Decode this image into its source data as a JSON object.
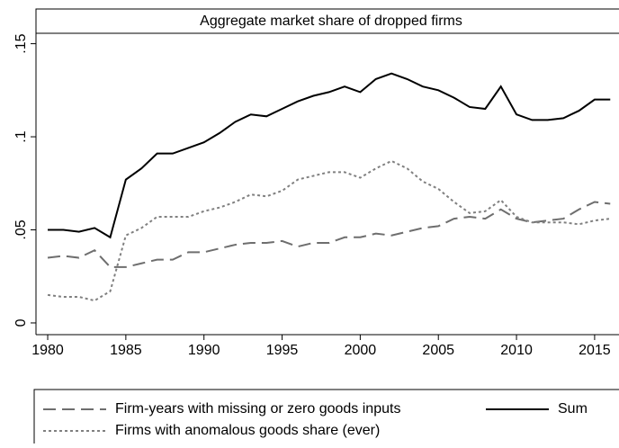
{
  "chart_data": {
    "type": "line",
    "title": "Aggregate market share of dropped firms",
    "x": [
      1980,
      1981,
      1982,
      1983,
      1984,
      1985,
      1986,
      1987,
      1988,
      1989,
      1990,
      1991,
      1992,
      1993,
      1994,
      1995,
      1996,
      1997,
      1998,
      1999,
      2000,
      2001,
      2002,
      2003,
      2004,
      2005,
      2006,
      2007,
      2008,
      2009,
      2010,
      2011,
      2012,
      2013,
      2014,
      2015,
      2016
    ],
    "series": [
      {
        "name": "Firm-years with missing or zero goods inputs",
        "color": "#6e6e6e",
        "linestyle": "dashed",
        "values": [
          0.035,
          0.036,
          0.035,
          0.039,
          0.03,
          0.03,
          0.032,
          0.034,
          0.034,
          0.038,
          0.038,
          0.04,
          0.042,
          0.043,
          0.043,
          0.044,
          0.041,
          0.043,
          0.043,
          0.046,
          0.046,
          0.048,
          0.047,
          0.049,
          0.051,
          0.052,
          0.056,
          0.057,
          0.056,
          0.061,
          0.056,
          0.054,
          0.055,
          0.056,
          0.061,
          0.065,
          0.064
        ]
      },
      {
        "name": "Sum",
        "color": "#000000",
        "linestyle": "solid",
        "values": [
          0.05,
          0.05,
          0.049,
          0.051,
          0.046,
          0.077,
          0.083,
          0.091,
          0.091,
          0.094,
          0.097,
          0.102,
          0.108,
          0.112,
          0.111,
          0.115,
          0.119,
          0.122,
          0.124,
          0.127,
          0.124,
          0.131,
          0.134,
          0.131,
          0.127,
          0.125,
          0.121,
          0.116,
          0.115,
          0.127,
          0.112,
          0.109,
          0.109,
          0.11,
          0.114,
          0.12,
          0.12
        ]
      },
      {
        "name": "Firms with anomalous goods share (ever)",
        "color": "#808080",
        "linestyle": "dotted",
        "values": [
          0.015,
          0.014,
          0.014,
          0.012,
          0.017,
          0.047,
          0.051,
          0.057,
          0.057,
          0.057,
          0.06,
          0.062,
          0.065,
          0.069,
          0.068,
          0.071,
          0.077,
          0.079,
          0.081,
          0.081,
          0.078,
          0.083,
          0.087,
          0.083,
          0.076,
          0.072,
          0.065,
          0.059,
          0.06,
          0.066,
          0.057,
          0.054,
          0.054,
          0.054,
          0.053,
          0.055,
          0.056
        ]
      }
    ],
    "xlim": [
      1979.25,
      2016.56
    ],
    "xticks": [
      1980,
      1985,
      1990,
      1995,
      2000,
      2005,
      2010,
      2015
    ],
    "ylim": [
      -0.0063,
      0.1556
    ],
    "yticks": [
      0,
      {
        "value": 0.05,
        "label": ".05"
      },
      {
        "value": 0.1,
        "label": ".1"
      },
      {
        "value": 0.15,
        "label": ".15"
      }
    ],
    "grid": false,
    "legend": "bottom"
  }
}
